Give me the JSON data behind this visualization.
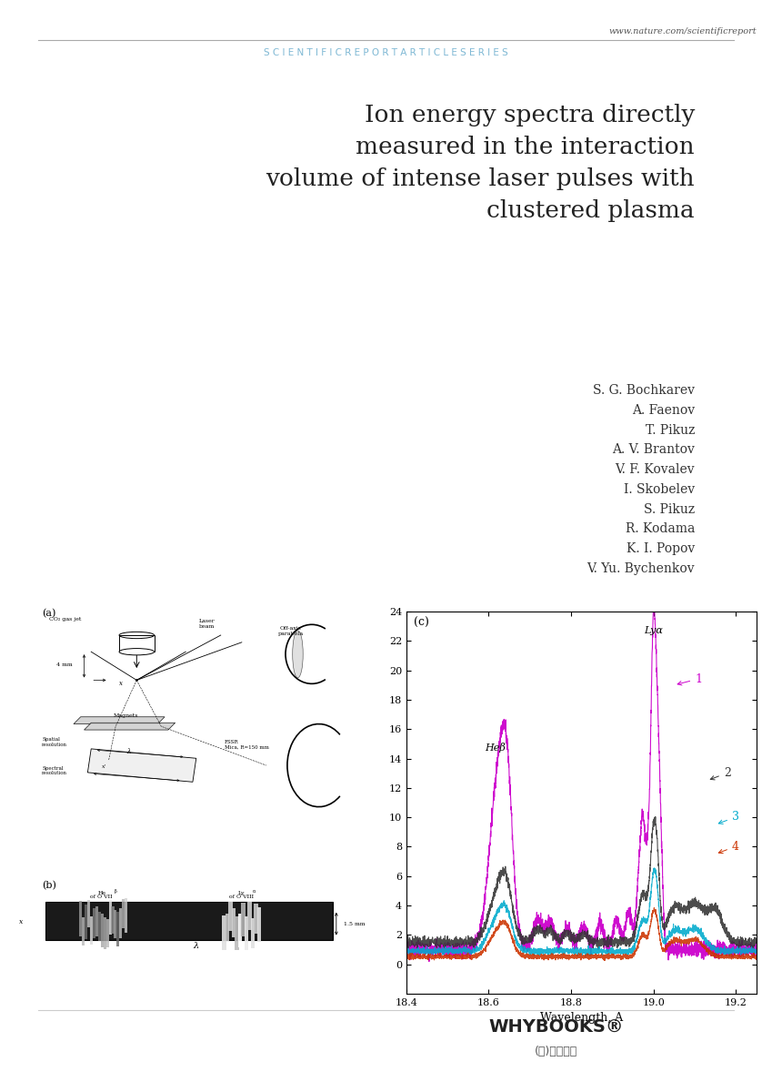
{
  "title_line1": "Ion energy spectra directly",
  "title_line2": "measured in the interaction",
  "title_line3": "volume of intense laser pulses with",
  "title_line4": "clustered plasma",
  "authors": [
    "S. G. Bochkarev",
    "A. Faenov",
    "T. Pikuz",
    "A. V. Brantov",
    "V. F. Kovalev",
    "I. Skobelev",
    "S. Pikuz",
    "R. Kodama",
    "K. I. Popov",
    "V. Yu. Bychenkov"
  ],
  "header_text": "www.nature.com/scientificreport",
  "header_series": "S C I E N T I F I C R E P O R T A R T I C L E S E R I E S",
  "publisher_name": "WHYBOOKS®",
  "publisher_korean": "(주)와이북스",
  "background_color": "#ffffff",
  "header_color": "#7eb8d4",
  "title_color": "#222222",
  "author_color": "#333333",
  "plot_xlim": [
    18.4,
    19.25
  ],
  "plot_ylim": [
    -2,
    24
  ],
  "plot_xlabel": "Wavelength, A",
  "plot_yticks": [
    0,
    2,
    4,
    6,
    8,
    10,
    12,
    14,
    16,
    18,
    20,
    22,
    24
  ],
  "plot_xticks": [
    18.4,
    18.6,
    18.8,
    19.0,
    19.2
  ],
  "line_colors": [
    "#cc00cc",
    "#333333",
    "#00aacc",
    "#cc3300"
  ],
  "line_labels": [
    "1",
    "2",
    "3",
    "4"
  ],
  "heb_label": "Heβ",
  "lya_label": "Lyα",
  "panel_a_label": "(a)",
  "panel_b_label": "(b)",
  "panel_c_label": "(c)"
}
